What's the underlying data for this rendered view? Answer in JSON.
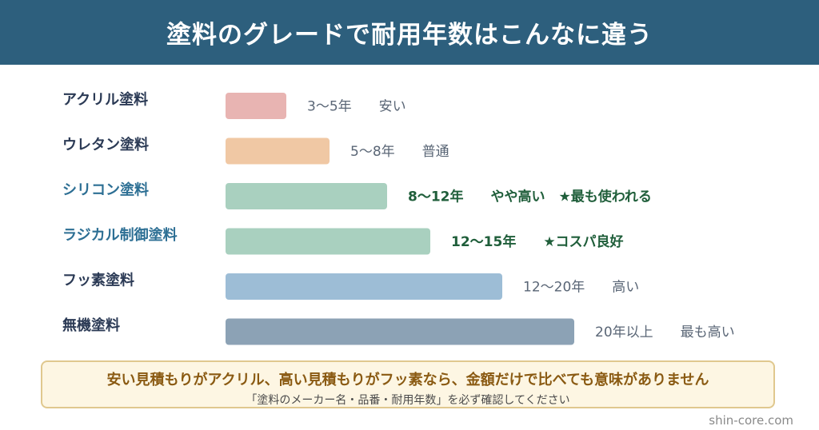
{
  "header": {
    "title": "塗料のグレードで耐用年数はこんなに違う"
  },
  "chart_data": {
    "type": "bar",
    "orientation": "horizontal",
    "title": "塗料のグレードで耐用年数はこんなに違う",
    "categories": [
      "アクリル塗料",
      "ウレタン塗料",
      "シリコン塗料",
      "ラジカル制御塗料",
      "フッ素塗料",
      "無機塗料"
    ],
    "series": [
      {
        "values": [
          5,
          8,
          12,
          15,
          20,
          25
        ]
      }
    ],
    "range_labels": [
      "3〜5年",
      "5〜8年",
      "8〜12年",
      "12〜15年",
      "12〜20年",
      "20年以上"
    ],
    "notes": [
      "安い",
      "普通",
      "やや高い　★最も使われる",
      "★コスパ良好",
      "高い",
      "最も高い"
    ],
    "highlighted": [
      false,
      false,
      true,
      true,
      false,
      false
    ],
    "colors": [
      "#e8b4b2",
      "#f0c8a4",
      "#a9d0bf",
      "#a9d0bf",
      "#9dbdd6",
      "#8ca2b5"
    ],
    "xlim": [
      0,
      25
    ],
    "grid": false,
    "legend": "none"
  },
  "note": {
    "main": "安い見積もりがアクリル、高い見積もりがフッ素なら、金額だけで比べても意味がありません",
    "sub": "「塗料のメーカー名・品番・耐用年数」を必ず確認してください"
  },
  "credit": "shin-core.com"
}
